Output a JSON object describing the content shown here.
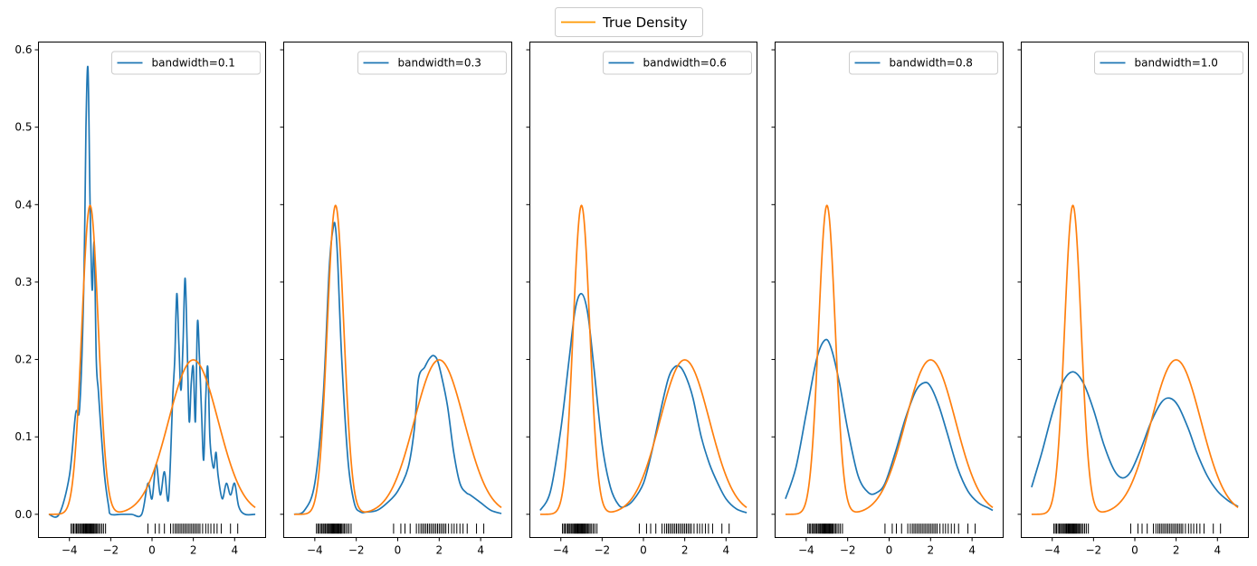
{
  "figure_legend": {
    "label": "True Density",
    "color": "#ff9900"
  },
  "colors": {
    "kde": "#1f77b4",
    "true_density": "#ff7f0e",
    "rug": "#000000"
  },
  "chart_data": [
    {
      "type": "line",
      "legend": "bandwidth=0.1",
      "bandwidth": 0.1,
      "x": [
        -5.0,
        -4.5,
        -4.0,
        -3.7,
        -3.5,
        -3.3,
        -3.2,
        -3.1,
        -3.0,
        -2.9,
        -2.8,
        -2.7,
        -2.6,
        -2.5,
        -2.3,
        -2.1,
        -2.0,
        -1.5,
        -1.0,
        -0.5,
        -0.2,
        0.0,
        0.2,
        0.4,
        0.6,
        0.8,
        1.0,
        1.1,
        1.2,
        1.3,
        1.4,
        1.5,
        1.6,
        1.7,
        1.8,
        1.9,
        2.0,
        2.1,
        2.2,
        2.3,
        2.4,
        2.5,
        2.6,
        2.7,
        2.8,
        2.9,
        3.0,
        3.1,
        3.2,
        3.4,
        3.6,
        3.8,
        4.0,
        4.2,
        4.5,
        5.0
      ],
      "y": [
        0.0,
        0.0,
        0.05,
        0.13,
        0.14,
        0.3,
        0.5,
        0.575,
        0.4,
        0.29,
        0.35,
        0.2,
        0.16,
        0.12,
        0.05,
        0.01,
        0.0,
        0.0,
        0.0,
        0.0,
        0.04,
        0.02,
        0.065,
        0.025,
        0.055,
        0.02,
        0.15,
        0.2,
        0.285,
        0.22,
        0.16,
        0.22,
        0.305,
        0.22,
        0.12,
        0.17,
        0.19,
        0.12,
        0.248,
        0.2,
        0.13,
        0.07,
        0.15,
        0.19,
        0.1,
        0.07,
        0.06,
        0.08,
        0.05,
        0.02,
        0.04,
        0.025,
        0.04,
        0.01,
        0.0,
        0.0
      ],
      "xlim": [
        -5.5,
        5.5
      ],
      "ylim": [
        -0.03,
        0.61
      ],
      "xticks": [
        -4,
        -2,
        0,
        2,
        4
      ],
      "yticks": [
        0.0,
        0.1,
        0.2,
        0.3,
        0.4,
        0.5,
        0.6
      ],
      "legend_placement": "upper-right"
    },
    {
      "type": "line",
      "legend": "bandwidth=0.3",
      "bandwidth": 0.3,
      "x": [
        -5.0,
        -4.5,
        -4.0,
        -3.6,
        -3.3,
        -3.1,
        -3.0,
        -2.9,
        -2.7,
        -2.4,
        -2.1,
        -1.8,
        -1.5,
        -1.0,
        -0.5,
        0.0,
        0.5,
        0.8,
        1.0,
        1.3,
        1.5,
        1.7,
        1.9,
        2.1,
        2.4,
        2.7,
        3.0,
        3.3,
        3.5,
        4.0,
        4.5,
        5.0
      ],
      "y": [
        0.0,
        0.005,
        0.04,
        0.15,
        0.32,
        0.372,
        0.37,
        0.33,
        0.2,
        0.07,
        0.015,
        0.003,
        0.003,
        0.005,
        0.015,
        0.03,
        0.06,
        0.11,
        0.175,
        0.19,
        0.2,
        0.205,
        0.2,
        0.18,
        0.14,
        0.08,
        0.04,
        0.028,
        0.025,
        0.015,
        0.005,
        0.001
      ],
      "xlim": [
        -5.5,
        5.5
      ],
      "ylim": [
        -0.03,
        0.61
      ],
      "xticks": [
        -4,
        -2,
        0,
        2,
        4
      ],
      "legend_placement": "upper-right"
    },
    {
      "type": "line",
      "legend": "bandwidth=0.6",
      "bandwidth": 0.6,
      "x": [
        -5.0,
        -4.5,
        -4.0,
        -3.6,
        -3.3,
        -3.0,
        -2.7,
        -2.4,
        -2.0,
        -1.6,
        -1.2,
        -0.9,
        -0.5,
        0.0,
        0.4,
        0.8,
        1.2,
        1.5,
        1.8,
        2.1,
        2.4,
        2.8,
        3.2,
        3.6,
        4.0,
        4.5,
        5.0
      ],
      "y": [
        0.005,
        0.03,
        0.11,
        0.2,
        0.265,
        0.285,
        0.26,
        0.19,
        0.09,
        0.035,
        0.012,
        0.01,
        0.018,
        0.04,
        0.08,
        0.13,
        0.175,
        0.19,
        0.19,
        0.175,
        0.15,
        0.1,
        0.065,
        0.04,
        0.02,
        0.007,
        0.002
      ],
      "xlim": [
        -5.5,
        5.5
      ],
      "ylim": [
        -0.03,
        0.61
      ],
      "xticks": [
        -4,
        -2,
        0,
        2,
        4
      ],
      "legend_placement": "upper-right"
    },
    {
      "type": "line",
      "legend": "bandwidth=0.8",
      "bandwidth": 0.8,
      "x": [
        -5.0,
        -4.5,
        -4.0,
        -3.5,
        -3.1,
        -2.8,
        -2.4,
        -2.0,
        -1.5,
        -1.0,
        -0.6,
        -0.2,
        0.3,
        0.8,
        1.3,
        1.7,
        2.0,
        2.4,
        2.8,
        3.3,
        3.8,
        4.3,
        4.8,
        5.0
      ],
      "y": [
        0.02,
        0.06,
        0.13,
        0.2,
        0.225,
        0.215,
        0.17,
        0.11,
        0.05,
        0.028,
        0.028,
        0.04,
        0.08,
        0.125,
        0.16,
        0.17,
        0.165,
        0.14,
        0.105,
        0.06,
        0.03,
        0.015,
        0.008,
        0.005
      ],
      "xlim": [
        -5.5,
        5.5
      ],
      "ylim": [
        -0.03,
        0.61
      ],
      "xticks": [
        -4,
        -2,
        0,
        2,
        4
      ],
      "legend_placement": "upper-right"
    },
    {
      "type": "line",
      "legend": "bandwidth=1.0",
      "bandwidth": 1.0,
      "x": [
        -5.0,
        -4.5,
        -4.0,
        -3.5,
        -3.0,
        -2.5,
        -2.0,
        -1.5,
        -1.0,
        -0.6,
        -0.2,
        0.3,
        0.8,
        1.3,
        1.7,
        2.1,
        2.6,
        3.0,
        3.5,
        4.0,
        4.5,
        5.0
      ],
      "y": [
        0.035,
        0.08,
        0.13,
        0.17,
        0.184,
        0.17,
        0.135,
        0.09,
        0.057,
        0.047,
        0.055,
        0.085,
        0.12,
        0.145,
        0.15,
        0.14,
        0.11,
        0.08,
        0.05,
        0.03,
        0.018,
        0.01
      ],
      "xlim": [
        -5.5,
        5.5
      ],
      "ylim": [
        -0.03,
        0.61
      ],
      "xticks": [
        -4,
        -2,
        0,
        2,
        4
      ],
      "legend_placement": "upper-right"
    }
  ],
  "true_density": {
    "components": [
      {
        "weight": 0.4,
        "mean": -3.0,
        "std": 0.4
      },
      {
        "weight": 0.6,
        "mean": 2.0,
        "std": 1.2
      }
    ],
    "x_range": [
      -5.0,
      5.0
    ]
  },
  "rug_samples": [
    -3.92,
    -3.85,
    -3.79,
    -3.72,
    -3.66,
    -3.6,
    -3.55,
    -3.49,
    -3.43,
    -3.38,
    -3.33,
    -3.29,
    -3.24,
    -3.2,
    -3.16,
    -3.12,
    -3.08,
    -3.04,
    -3.0,
    -2.96,
    -2.92,
    -2.88,
    -2.84,
    -2.8,
    -2.75,
    -2.7,
    -2.64,
    -2.58,
    -2.51,
    -2.43,
    -2.35,
    -2.25,
    -0.2,
    0.15,
    0.35,
    0.6,
    0.9,
    1.02,
    1.12,
    1.2,
    1.28,
    1.36,
    1.44,
    1.52,
    1.6,
    1.68,
    1.76,
    1.84,
    1.92,
    2.0,
    2.08,
    2.16,
    2.24,
    2.32,
    2.45,
    2.6,
    2.72,
    2.85,
    3.0,
    3.15,
    3.35,
    3.8,
    4.15
  ]
}
